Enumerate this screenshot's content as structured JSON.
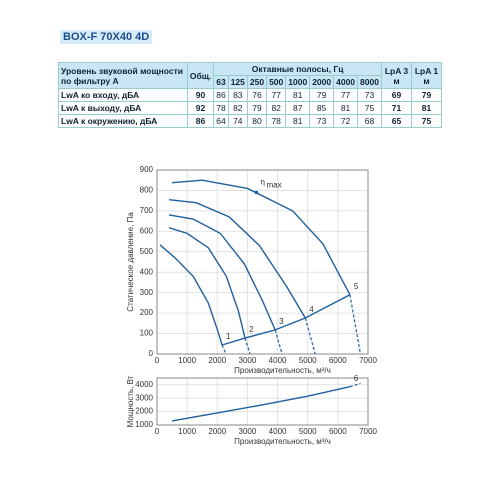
{
  "header": {
    "title": "BOX-F 70X40 4D"
  },
  "table": {
    "head": {
      "label": "Уровень звуковой мощности по фильтру А",
      "total": "Общ.",
      "bands_title": "Октавные полосы, Гц",
      "bands": [
        63,
        125,
        250,
        500,
        1000,
        2000,
        4000,
        8000
      ],
      "lpa3": "LpA 3 м",
      "lpa1": "LpA 1 м"
    },
    "rows": [
      {
        "label": "LwA ко входу, дБА",
        "total": 90,
        "bands": [
          86,
          83,
          76,
          77,
          81,
          79,
          77,
          73
        ],
        "lpa3": 69,
        "lpa1": 79
      },
      {
        "label": "LwA к выходу, дБА",
        "total": 92,
        "bands": [
          78,
          82,
          79,
          82,
          87,
          85,
          81,
          75
        ],
        "lpa3": 71,
        "lpa1": 81
      },
      {
        "label": "LwA к окружению, дБА",
        "total": 86,
        "bands": [
          64,
          74,
          80,
          78,
          81,
          73,
          72,
          68
        ],
        "lpa3": 65,
        "lpa1": 75
      }
    ]
  },
  "chart_data": [
    {
      "type": "line",
      "xlabel": "Производительность, м³/ч",
      "ylabel": "Статическое давление, Па",
      "xlim": [
        0,
        7000
      ],
      "xticks": [
        0,
        1000,
        2000,
        3000,
        4000,
        5000,
        6000,
        7000
      ],
      "ylim": [
        0,
        900
      ],
      "yticks": [
        0,
        100,
        200,
        300,
        400,
        500,
        600,
        700,
        800,
        900
      ],
      "grid": true,
      "series": [
        {
          "name": "1",
          "color": "#1f5f9e",
          "x": [
            100,
            600,
            1200,
            1700,
            2000,
            2160
          ],
          "values": [
            534,
            470,
            380,
            250,
            120,
            44
          ],
          "tail": {
            "x": [
              2160,
              2290
            ],
            "values": [
              44,
              0
            ]
          }
        },
        {
          "name": "2",
          "color": "#1f5f9e",
          "x": [
            400,
            1000,
            1700,
            2300,
            2700,
            2920
          ],
          "values": [
            618,
            590,
            520,
            380,
            210,
            78
          ],
          "tail": {
            "x": [
              2920,
              3090
            ],
            "values": [
              78,
              0
            ]
          }
        },
        {
          "name": "3",
          "color": "#1f5f9e",
          "x": [
            400,
            1200,
            2100,
            2900,
            3500,
            3920
          ],
          "values": [
            680,
            660,
            590,
            440,
            260,
            118
          ],
          "tail": {
            "x": [
              3920,
              4150
            ],
            "values": [
              118,
              0
            ]
          }
        },
        {
          "name": "4",
          "color": "#1f5f9e",
          "x": [
            400,
            1300,
            2400,
            3400,
            4300,
            4920
          ],
          "values": [
            755,
            740,
            670,
            530,
            330,
            176
          ],
          "tail": {
            "x": [
              4920,
              5250
            ],
            "values": [
              176,
              0
            ]
          }
        },
        {
          "name": "5",
          "color": "#1f5f9e",
          "x": [
            500,
            1500,
            3000,
            4500,
            5500,
            6400
          ],
          "values": [
            838,
            850,
            810,
            700,
            540,
            290
          ],
          "tail": {
            "x": [
              6400,
              6750
            ],
            "values": [
              290,
              0
            ]
          }
        },
        {
          "color": "#1f5f9e",
          "x": [
            2160,
            2920,
            3920,
            4920,
            6400
          ],
          "values": [
            44,
            78,
            118,
            176,
            290
          ]
        }
      ],
      "eta_max": {
        "label": "η",
        "sub": "max",
        "x": 3300,
        "y": 790
      }
    },
    {
      "type": "line",
      "xlabel": "Производительность, м³/ч",
      "ylabel": "Мощность, Вт",
      "xlim": [
        0,
        7000
      ],
      "xticks": [
        0,
        1000,
        2000,
        3000,
        4000,
        5000,
        6000,
        7000
      ],
      "ylim": [
        1000,
        4500
      ],
      "yticks": [
        1000,
        2000,
        3000,
        4000
      ],
      "grid": true,
      "series": [
        {
          "name": "6",
          "color": "#1f5f9e",
          "x": [
            500,
            2000,
            3500,
            5000,
            6400
          ],
          "values": [
            1300,
            1900,
            2500,
            3150,
            3850
          ],
          "tail": {
            "x": [
              6400,
              6750
            ],
            "values": [
              3850,
              4100
            ]
          }
        }
      ]
    }
  ]
}
